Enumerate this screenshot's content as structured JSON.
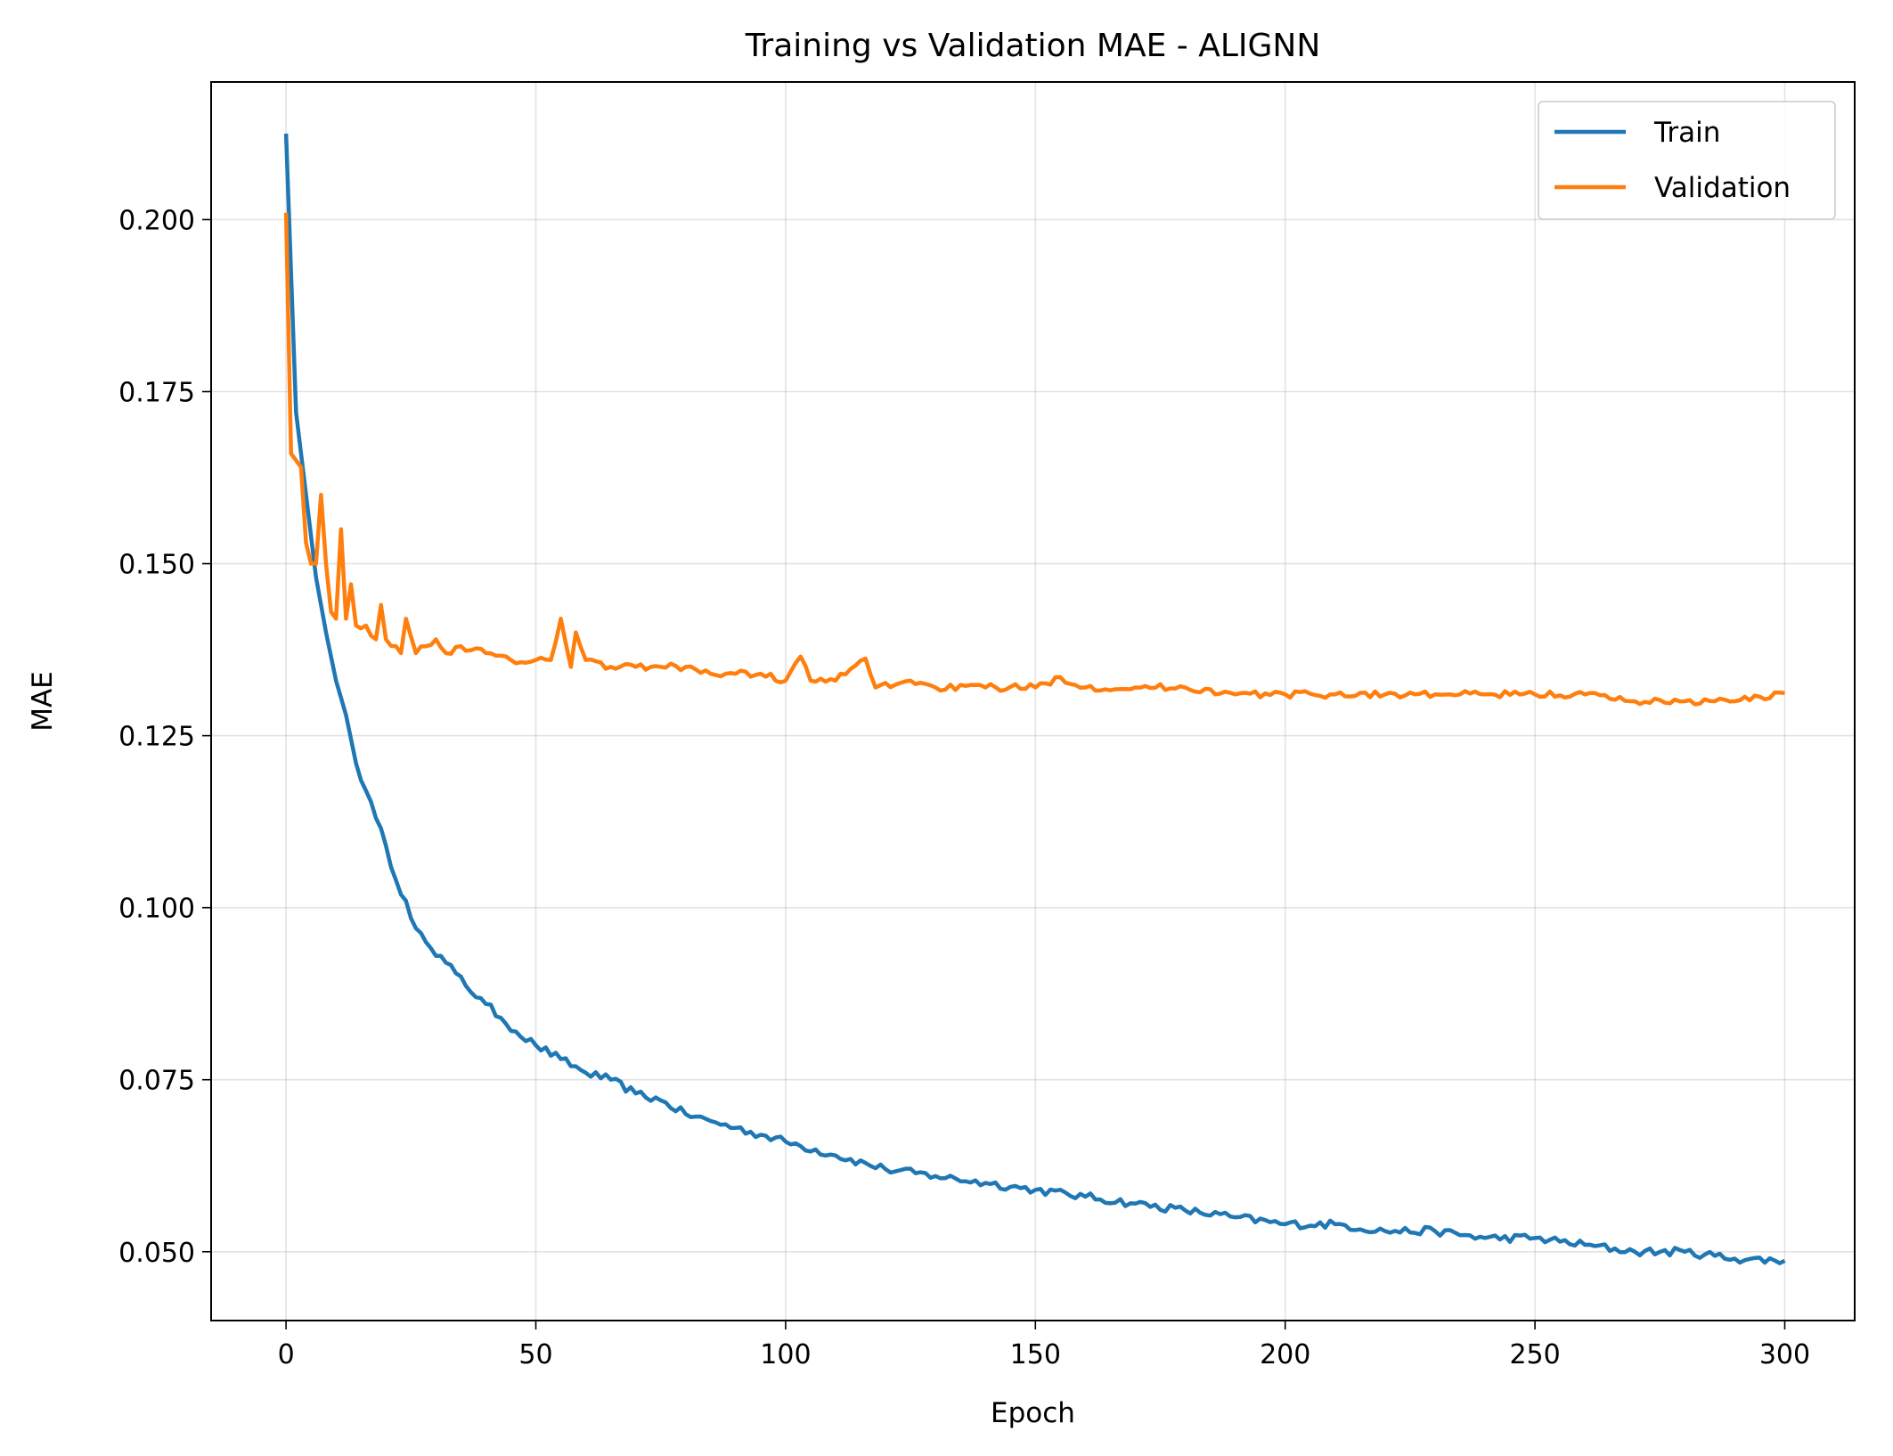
{
  "chart_data": {
    "type": "line",
    "title": "Training vs Validation MAE - ALIGNN",
    "xlabel": "Epoch",
    "ylabel": "MAE",
    "xlim": [
      -15,
      314
    ],
    "ylim": [
      0.04,
      0.22
    ],
    "xticks": [
      0,
      50,
      100,
      150,
      200,
      250,
      300
    ],
    "xtick_labels": [
      "0",
      "50",
      "100",
      "150",
      "200",
      "250",
      "300"
    ],
    "yticks": [
      0.05,
      0.075,
      0.1,
      0.125,
      0.15,
      0.175,
      0.2
    ],
    "ytick_labels": [
      "0.050",
      "0.075",
      "0.100",
      "0.125",
      "0.150",
      "0.175",
      "0.200"
    ],
    "grid": true,
    "legend_position": "top-right",
    "series": [
      {
        "name": "Train",
        "color": "#1f77b4",
        "keypoints": [
          [
            0,
            0.2125
          ],
          [
            2,
            0.172
          ],
          [
            4,
            0.16
          ],
          [
            6,
            0.148
          ],
          [
            8,
            0.14
          ],
          [
            10,
            0.133
          ],
          [
            12,
            0.128
          ],
          [
            14,
            0.121
          ],
          [
            16,
            0.117
          ],
          [
            18,
            0.113
          ],
          [
            20,
            0.109
          ],
          [
            22,
            0.104
          ],
          [
            24,
            0.101
          ],
          [
            26,
            0.097
          ],
          [
            28,
            0.095
          ],
          [
            30,
            0.093
          ],
          [
            32,
            0.092
          ],
          [
            35,
            0.09
          ],
          [
            38,
            0.087
          ],
          [
            40,
            0.086
          ],
          [
            43,
            0.084
          ],
          [
            46,
            0.082
          ],
          [
            50,
            0.08
          ],
          [
            55,
            0.078
          ],
          [
            60,
            0.076
          ],
          [
            65,
            0.075
          ],
          [
            70,
            0.073
          ],
          [
            75,
            0.072
          ],
          [
            80,
            0.07
          ],
          [
            85,
            0.069
          ],
          [
            90,
            0.068
          ],
          [
            95,
            0.067
          ],
          [
            100,
            0.066
          ],
          [
            110,
            0.064
          ],
          [
            120,
            0.062
          ],
          [
            130,
            0.061
          ],
          [
            140,
            0.06
          ],
          [
            150,
            0.059
          ],
          [
            160,
            0.058
          ],
          [
            170,
            0.057
          ],
          [
            180,
            0.056
          ],
          [
            190,
            0.055
          ],
          [
            200,
            0.054
          ],
          [
            210,
            0.054
          ],
          [
            220,
            0.053
          ],
          [
            230,
            0.053
          ],
          [
            240,
            0.052
          ],
          [
            250,
            0.052
          ],
          [
            260,
            0.051
          ],
          [
            270,
            0.05
          ],
          [
            280,
            0.05
          ],
          [
            290,
            0.049
          ],
          [
            300,
            0.0487
          ]
        ],
        "noise": 0.0006
      },
      {
        "name": "Validation",
        "color": "#ff7f0e",
        "keypoints": [
          [
            0,
            0.201
          ],
          [
            1,
            0.166
          ],
          [
            2,
            0.165
          ],
          [
            3,
            0.164
          ],
          [
            4,
            0.153
          ],
          [
            5,
            0.15
          ],
          [
            6,
            0.15
          ],
          [
            7,
            0.16
          ],
          [
            8,
            0.15
          ],
          [
            9,
            0.143
          ],
          [
            10,
            0.142
          ],
          [
            11,
            0.155
          ],
          [
            12,
            0.142
          ],
          [
            13,
            0.147
          ],
          [
            14,
            0.141
          ],
          [
            16,
            0.141
          ],
          [
            18,
            0.139
          ],
          [
            19,
            0.144
          ],
          [
            20,
            0.139
          ],
          [
            22,
            0.138
          ],
          [
            23,
            0.137
          ],
          [
            24,
            0.142
          ],
          [
            26,
            0.137
          ],
          [
            28,
            0.138
          ],
          [
            30,
            0.139
          ],
          [
            32,
            0.137
          ],
          [
            35,
            0.138
          ],
          [
            40,
            0.137
          ],
          [
            45,
            0.136
          ],
          [
            50,
            0.136
          ],
          [
            53,
            0.136
          ],
          [
            55,
            0.142
          ],
          [
            57,
            0.135
          ],
          [
            58,
            0.14
          ],
          [
            60,
            0.136
          ],
          [
            65,
            0.135
          ],
          [
            70,
            0.135
          ],
          [
            75,
            0.135
          ],
          [
            80,
            0.135
          ],
          [
            85,
            0.134
          ],
          [
            90,
            0.134
          ],
          [
            95,
            0.134
          ],
          [
            100,
            0.133
          ],
          [
            103,
            0.1365
          ],
          [
            105,
            0.133
          ],
          [
            110,
            0.133
          ],
          [
            116,
            0.1362
          ],
          [
            118,
            0.132
          ],
          [
            125,
            0.133
          ],
          [
            130,
            0.132
          ],
          [
            140,
            0.132
          ],
          [
            150,
            0.132
          ],
          [
            155,
            0.1335
          ],
          [
            160,
            0.132
          ],
          [
            170,
            0.132
          ],
          [
            180,
            0.132
          ],
          [
            190,
            0.131
          ],
          [
            200,
            0.131
          ],
          [
            210,
            0.131
          ],
          [
            220,
            0.131
          ],
          [
            230,
            0.131
          ],
          [
            240,
            0.131
          ],
          [
            250,
            0.131
          ],
          [
            260,
            0.131
          ],
          [
            270,
            0.13
          ],
          [
            280,
            0.13
          ],
          [
            290,
            0.13
          ],
          [
            300,
            0.1312
          ]
        ],
        "noise": 0.0005
      }
    ]
  }
}
